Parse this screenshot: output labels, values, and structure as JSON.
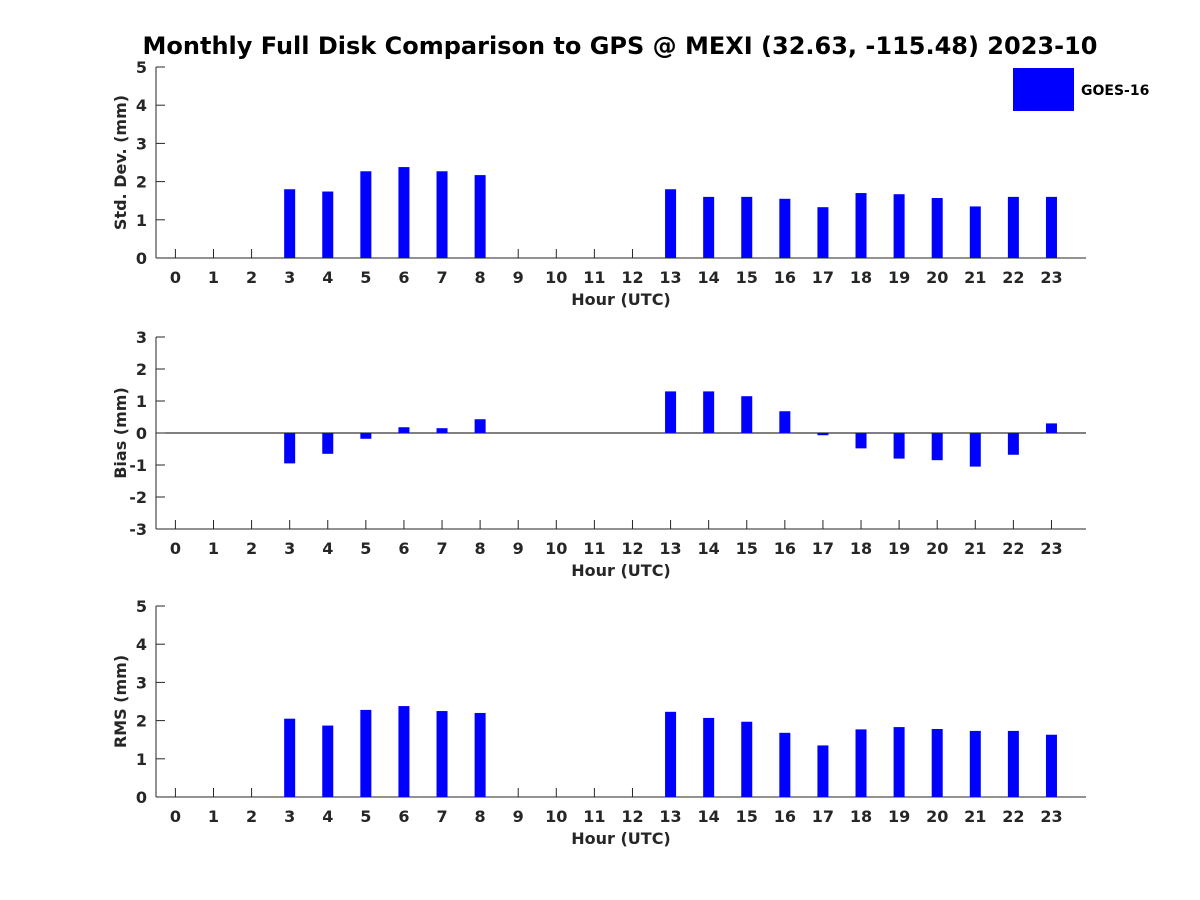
{
  "figure": {
    "title": "Monthly Full Disk Comparison to GPS @ MEXI (32.63, -115.48) 2023-10"
  },
  "legend": {
    "entries": [
      {
        "name": "GOES-16",
        "color": "#0000ff"
      }
    ]
  },
  "chart_data": [
    {
      "type": "bar",
      "ylabel": "Std. Dev. (mm)",
      "xlabel": "Hour (UTC)",
      "ylim": [
        0,
        5
      ],
      "yticks": [
        0,
        1,
        2,
        3,
        4,
        5
      ],
      "categories": [
        "0",
        "1",
        "2",
        "3",
        "4",
        "5",
        "6",
        "7",
        "8",
        "9",
        "10",
        "11",
        "12",
        "13",
        "14",
        "15",
        "16",
        "17",
        "18",
        "19",
        "20",
        "21",
        "22",
        "23"
      ],
      "series": [
        {
          "name": "GOES-16",
          "color": "#0000ff",
          "values": [
            null,
            null,
            null,
            1.8,
            1.74,
            2.27,
            2.38,
            2.27,
            2.17,
            null,
            null,
            null,
            null,
            1.8,
            1.6,
            1.6,
            1.55,
            1.33,
            1.7,
            1.67,
            1.57,
            1.35,
            1.6,
            1.6
          ]
        }
      ]
    },
    {
      "type": "bar",
      "ylabel": "Bias (mm)",
      "xlabel": "Hour (UTC)",
      "ylim": [
        -3,
        3
      ],
      "yticks": [
        -3,
        -2,
        -1,
        0,
        1,
        2,
        3
      ],
      "categories": [
        "0",
        "1",
        "2",
        "3",
        "4",
        "5",
        "6",
        "7",
        "8",
        "9",
        "10",
        "11",
        "12",
        "13",
        "14",
        "15",
        "16",
        "17",
        "18",
        "19",
        "20",
        "21",
        "22",
        "23"
      ],
      "series": [
        {
          "name": "GOES-16",
          "color": "#0000ff",
          "values": [
            null,
            null,
            null,
            -0.95,
            -0.65,
            -0.18,
            0.18,
            0.15,
            0.43,
            null,
            null,
            null,
            null,
            1.3,
            1.3,
            1.15,
            0.68,
            -0.07,
            -0.48,
            -0.8,
            -0.85,
            -1.05,
            -0.68,
            0.3
          ]
        }
      ]
    },
    {
      "type": "bar",
      "ylabel": "RMS (mm)",
      "xlabel": "Hour (UTC)",
      "ylim": [
        0,
        5
      ],
      "yticks": [
        0,
        1,
        2,
        3,
        4,
        5
      ],
      "categories": [
        "0",
        "1",
        "2",
        "3",
        "4",
        "5",
        "6",
        "7",
        "8",
        "9",
        "10",
        "11",
        "12",
        "13",
        "14",
        "15",
        "16",
        "17",
        "18",
        "19",
        "20",
        "21",
        "22",
        "23"
      ],
      "series": [
        {
          "name": "GOES-16",
          "color": "#0000ff",
          "values": [
            null,
            null,
            null,
            2.05,
            1.87,
            2.28,
            2.38,
            2.25,
            2.2,
            null,
            null,
            null,
            null,
            2.23,
            2.07,
            1.97,
            1.68,
            1.35,
            1.77,
            1.83,
            1.78,
            1.73,
            1.73,
            1.63
          ]
        }
      ]
    }
  ]
}
